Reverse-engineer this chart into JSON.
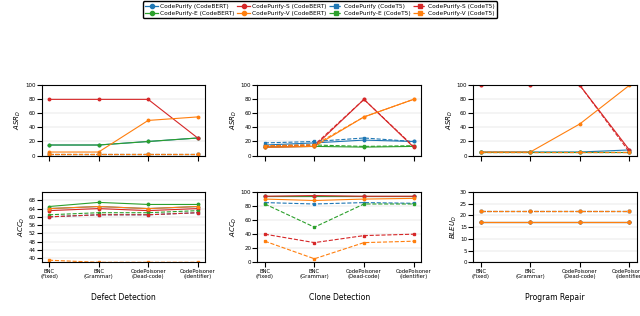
{
  "x_labels": [
    "BNC\n(Fixed)",
    "BNC\n(Grammar)",
    "CodePoisoner\n(Dead-code)",
    "CodePoisoner\n(Identifier)"
  ],
  "x_positions": [
    0,
    1,
    2,
    3
  ],
  "colors": {
    "blue": "#1f77b4",
    "green": "#2ca02c",
    "red": "#d62728",
    "orange": "#ff7f0e",
    "olive": "#808000"
  },
  "defect_asr": {
    "ylabel": "$ASR_D$",
    "ylim": [
      0,
      100
    ],
    "yticks": [
      0,
      20,
      40,
      60,
      80,
      100
    ],
    "lines": {
      "CodePurify_bert": [
        15,
        15,
        20,
        25
      ],
      "CodePurify_E_bert": [
        15,
        15,
        20,
        25
      ],
      "CodePurify_S_bert": [
        80,
        80,
        80,
        25
      ],
      "CodePurify_V_bert": [
        5,
        5,
        50,
        55
      ],
      "CodePurify_t5": [
        2,
        2,
        2,
        2
      ],
      "CodePurify_E_t5": [
        2,
        2,
        2,
        2
      ],
      "CodePurify_S_t5": [
        2,
        2,
        2,
        2
      ],
      "CodePurify_V_t5": [
        2,
        2,
        2,
        2
      ]
    }
  },
  "defect_acc": {
    "ylabel": "$ACC_D$",
    "ylim": [
      38,
      72
    ],
    "yticks": [
      40,
      44,
      48,
      52,
      56,
      60,
      64,
      68
    ],
    "lines": {
      "CodePurify_bert": [
        64,
        65,
        64,
        65
      ],
      "CodePurify_E_bert": [
        65,
        67,
        66,
        66
      ],
      "CodePurify_S_bert": [
        63,
        64,
        63,
        64
      ],
      "CodePurify_V_bert": [
        64,
        65,
        64,
        65
      ],
      "CodePurify_t5": [
        60,
        61,
        61,
        62
      ],
      "CodePurify_E_t5": [
        61,
        62,
        62,
        63
      ],
      "CodePurify_S_t5": [
        60,
        61,
        61,
        62
      ],
      "CodePurify_V_t5": [
        39,
        38,
        38,
        38
      ]
    }
  },
  "clone_asr": {
    "ylabel": "$ASR_D$",
    "ylim": [
      0,
      100
    ],
    "yticks": [
      0,
      20,
      40,
      60,
      80,
      100
    ],
    "lines": {
      "CodePurify_bert": [
        15,
        18,
        22,
        20
      ],
      "CodePurify_E_bert": [
        12,
        13,
        12,
        13
      ],
      "CodePurify_S_bert": [
        12,
        13,
        80,
        12
      ],
      "CodePurify_V_bert": [
        12,
        13,
        55,
        80
      ],
      "CodePurify_t5": [
        18,
        20,
        25,
        20
      ],
      "CodePurify_E_t5": [
        14,
        15,
        13,
        14
      ],
      "CodePurify_S_t5": [
        14,
        15,
        80,
        13
      ],
      "CodePurify_V_t5": [
        14,
        15,
        55,
        80
      ]
    }
  },
  "clone_acc": {
    "ylabel": "$ACC_D$",
    "ylim": [
      0,
      100
    ],
    "yticks": [
      0,
      20,
      40,
      60,
      80,
      100
    ],
    "lines": {
      "CodePurify_bert": [
        95,
        95,
        95,
        95
      ],
      "CodePurify_E_bert": [
        95,
        95,
        95,
        95
      ],
      "CodePurify_S_bert": [
        94,
        95,
        94,
        94
      ],
      "CodePurify_V_bert": [
        90,
        88,
        90,
        91
      ],
      "CodePurify_t5": [
        85,
        83,
        85,
        84
      ],
      "CodePurify_E_t5": [
        83,
        50,
        83,
        83
      ],
      "CodePurify_S_t5": [
        40,
        28,
        38,
        40
      ],
      "CodePurify_V_t5": [
        30,
        5,
        28,
        30
      ]
    }
  },
  "repair_asr": {
    "ylabel": "$ASR_D$",
    "ylim": [
      0,
      100
    ],
    "yticks": [
      0,
      20,
      40,
      60,
      80,
      100
    ],
    "lines": {
      "CodePurify_bert": [
        5,
        5,
        5,
        8
      ],
      "CodePurify_E_bert": [
        5,
        5,
        5,
        5
      ],
      "CodePurify_S_bert": [
        100,
        100,
        100,
        8
      ],
      "CodePurify_V_bert": [
        5,
        5,
        45,
        100
      ],
      "CodePurify_t5": [
        5,
        5,
        5,
        5
      ],
      "CodePurify_E_t5": [
        5,
        5,
        5,
        5
      ],
      "CodePurify_S_t5": [
        100,
        100,
        100,
        5
      ],
      "CodePurify_V_t5": [
        5,
        5,
        5,
        5
      ]
    }
  },
  "repair_bleu": {
    "ylabel": "$BLEU_D$",
    "ylim": [
      0,
      30
    ],
    "yticks": [
      0,
      5,
      10,
      15,
      20,
      25,
      30
    ],
    "lines": {
      "CodePurify_bert": [
        17,
        17,
        17,
        17
      ],
      "CodePurify_E_bert": [
        17,
        17,
        17,
        17
      ],
      "CodePurify_S_bert": [
        17,
        17,
        17,
        17
      ],
      "CodePurify_V_bert": [
        17,
        17,
        17,
        17
      ],
      "CodePurify_t5": [
        22,
        22,
        22,
        22
      ],
      "CodePurify_E_t5": [
        22,
        22,
        22,
        22
      ],
      "CodePurify_S_t5": [
        22,
        22,
        22,
        22
      ],
      "CodePurify_V_t5": [
        22,
        22,
        22,
        22
      ]
    }
  }
}
